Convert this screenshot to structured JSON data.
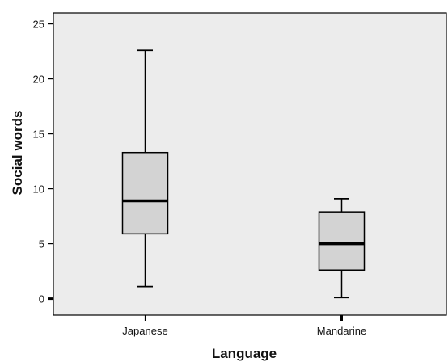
{
  "chart_data": {
    "type": "box",
    "xlabel": "Language",
    "ylabel": "Social words",
    "ylim": [
      -1.5,
      26
    ],
    "yticks": [
      0,
      5,
      10,
      15,
      20,
      25
    ],
    "grid": false,
    "categories": [
      "Japanese",
      "Mandarine"
    ],
    "boxes": [
      {
        "category": "Japanese",
        "min": 1.1,
        "q1": 5.9,
        "median": 8.9,
        "q3": 13.3,
        "max": 22.6
      },
      {
        "category": "Mandarine",
        "min": 0.1,
        "q1": 2.6,
        "median": 5.0,
        "q3": 7.9,
        "max": 9.1
      }
    ],
    "colors": {
      "plot_background": "#ececec",
      "box_fill": "#d3d3d3",
      "stroke": "#000000"
    }
  }
}
